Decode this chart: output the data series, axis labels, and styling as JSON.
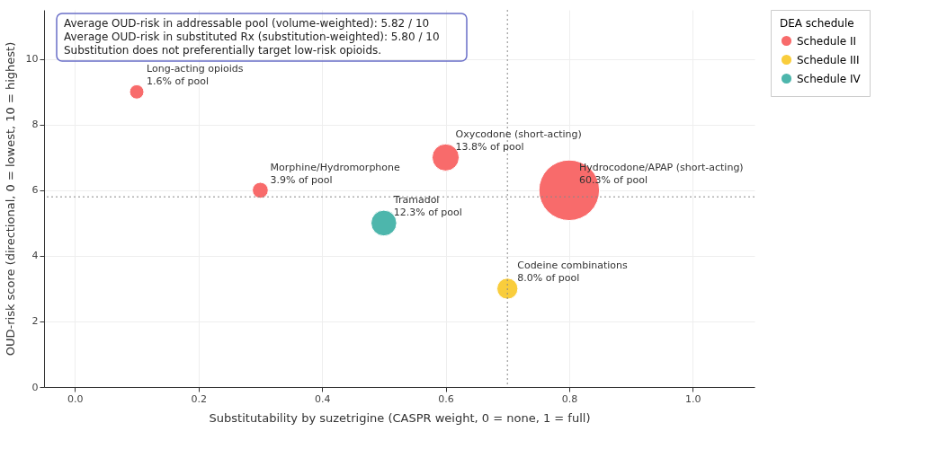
{
  "chart_data": {
    "type": "bubble",
    "xlabel": "Substitutability by suzetrigine (CASPR weight, 0 = none, 1 = full)",
    "ylabel": "OUD-risk score (directional, 0 = lowest, 10 = highest)",
    "legend_title": "DEA schedule",
    "series": [
      {
        "name": "Schedule II",
        "color": "#f86b6b",
        "x": [
          0.1,
          0.3,
          0.6,
          0.8
        ],
        "values": [
          9,
          6,
          7,
          6
        ],
        "sizes": [
          0.056,
          0.069,
          0.2,
          1
        ]
      },
      {
        "name": "Schedule III",
        "color": "#f9cd3c",
        "x": [
          0.7
        ],
        "values": [
          3
        ],
        "sizes": [
          0.12
        ]
      },
      {
        "name": "Schedule IV",
        "color": "#4db6ac",
        "x": [
          0.5
        ],
        "values": [
          5
        ],
        "sizes": [
          0.18
        ]
      }
    ],
    "xlim": [
      -0.05,
      1.1
    ],
    "ylim": [
      0,
      11.5
    ],
    "xticks": [
      {
        "value": 0,
        "label": "0.0"
      },
      0.2,
      0.4,
      0.6,
      0.8,
      {
        "value": 1,
        "label": "1.0"
      }
    ],
    "yticks": [
      0,
      2,
      4,
      6,
      8,
      10
    ],
    "ref_lines": [
      {
        "axis": "x",
        "value": 0.7,
        "color": "#888888",
        "line_style": "dotted"
      },
      {
        "axis": "y",
        "value": 5.8,
        "color": "#888888",
        "line_style": "dotted"
      }
    ],
    "annotations": [
      "Average OUD-risk in addressable pool (volume-weighted):     5.82 / 10\nAverage OUD-risk in substituted Rx (substitution-weighted): 5.80 / 10\nSubstitution does not preferentially target low-risk opioids.",
      {
        "text": "Long-acting opioids\n1.6% of pool",
        "x": 0.1,
        "y": 9
      },
      {
        "text": "Morphine/Hydromorphone\n3.9% of pool",
        "x": 0.3,
        "y": 6
      },
      {
        "text": "Oxycodone (short-acting)\n13.8% of pool",
        "x": 0.6,
        "y": 7
      },
      {
        "text": "Hydrocodone/APAP (short-acting)\n60.3% of pool",
        "x": 0.8,
        "y": 6
      },
      {
        "text": "Tramadol\n12.3% of pool",
        "x": 0.5,
        "y": 5
      },
      {
        "text": "Codeine combinations\n8.0% of pool",
        "x": 0.7,
        "y": 3
      }
    ],
    "grid": true,
    "legend": "top right",
    "marker": "circle"
  }
}
